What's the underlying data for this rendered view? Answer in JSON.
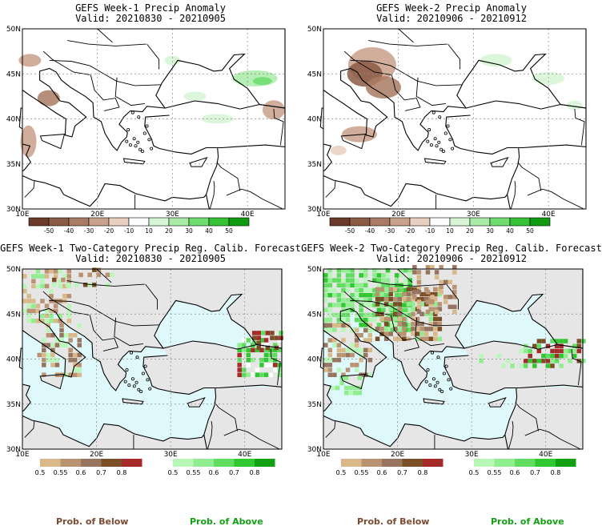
{
  "panels": [
    {
      "title": "GEFS Week-1 Precip Anomaly",
      "valid": "Valid: 20210830 - 20210905",
      "kind": "anomaly",
      "week": 1
    },
    {
      "title": "GEFS Week-2 Precip Anomaly",
      "valid": "Valid: 20210906 - 20210912",
      "kind": "anomaly",
      "week": 2
    },
    {
      "title": "GEFS Week-1 Two-Category Precip Reg. Calib. Forecast",
      "valid": "Valid: 20210830 - 20210905",
      "kind": "prob",
      "week": 1
    },
    {
      "title": "GEFS Week-2 Two-Category Precip Reg. Calib. Forecast",
      "valid": "Valid: 20210906 - 20210912",
      "kind": "prob",
      "week": 2
    }
  ],
  "map_axes": {
    "lat_labels": [
      "50N",
      "45N",
      "40N",
      "35N",
      "30N"
    ],
    "lon_labels": [
      "10E",
      "20E",
      "30E",
      "40E"
    ]
  },
  "anomaly_scale": {
    "labels": [
      "-50",
      "-40",
      "-30",
      "-20",
      "-10",
      "10",
      "20",
      "30",
      "40",
      "50"
    ],
    "colors": [
      "#6b3a2a",
      "#8b5a45",
      "#a97b64",
      "#c9a08a",
      "#e8cfc0",
      "#ffffff",
      "#d5f5d5",
      "#a8eca8",
      "#6fdc6f",
      "#35c235",
      "#109a10"
    ]
  },
  "prob_scale": {
    "below_labels": [
      "0.5",
      "0.55",
      "0.6",
      "0.7",
      "0.8"
    ],
    "above_labels": [
      "0.5",
      "0.55",
      "0.6",
      "0.7",
      "0.8"
    ],
    "below_colors": [
      "#d9b98a",
      "#b99272",
      "#96745f",
      "#7a4f26",
      "#a52a2a"
    ],
    "above_colors": [
      "#b9f7b9",
      "#90ee90",
      "#60dd60",
      "#30c830",
      "#10a010"
    ]
  },
  "colors": {
    "land": "#e6e6e6",
    "sea": "#dff8fb",
    "below_text": "#7a4a32",
    "above_text": "#14a014"
  },
  "footer": {
    "below_left": "Prob. of Below",
    "above_left": "Prob. of Above",
    "below_right": "Prob. of Below",
    "above_right": "Prob. of Above"
  }
}
